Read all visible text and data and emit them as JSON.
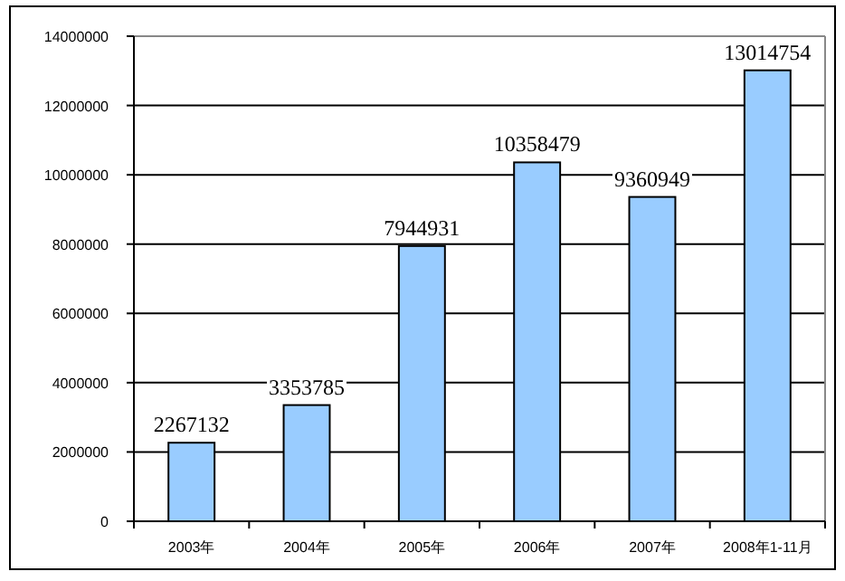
{
  "chart_data": {
    "type": "bar",
    "categories": [
      "2003年",
      "2004年",
      "2005年",
      "2006年",
      "2007年",
      "2008年1-11月"
    ],
    "values": [
      2267132,
      3353785,
      7944931,
      10358479,
      9360949,
      13014754
    ],
    "color": "#99ccff",
    "ylim": [
      0,
      14000000
    ],
    "yticks": [
      0,
      2000000,
      4000000,
      6000000,
      8000000,
      10000000,
      12000000,
      14000000
    ],
    "grid": "y",
    "data_labels": true
  }
}
